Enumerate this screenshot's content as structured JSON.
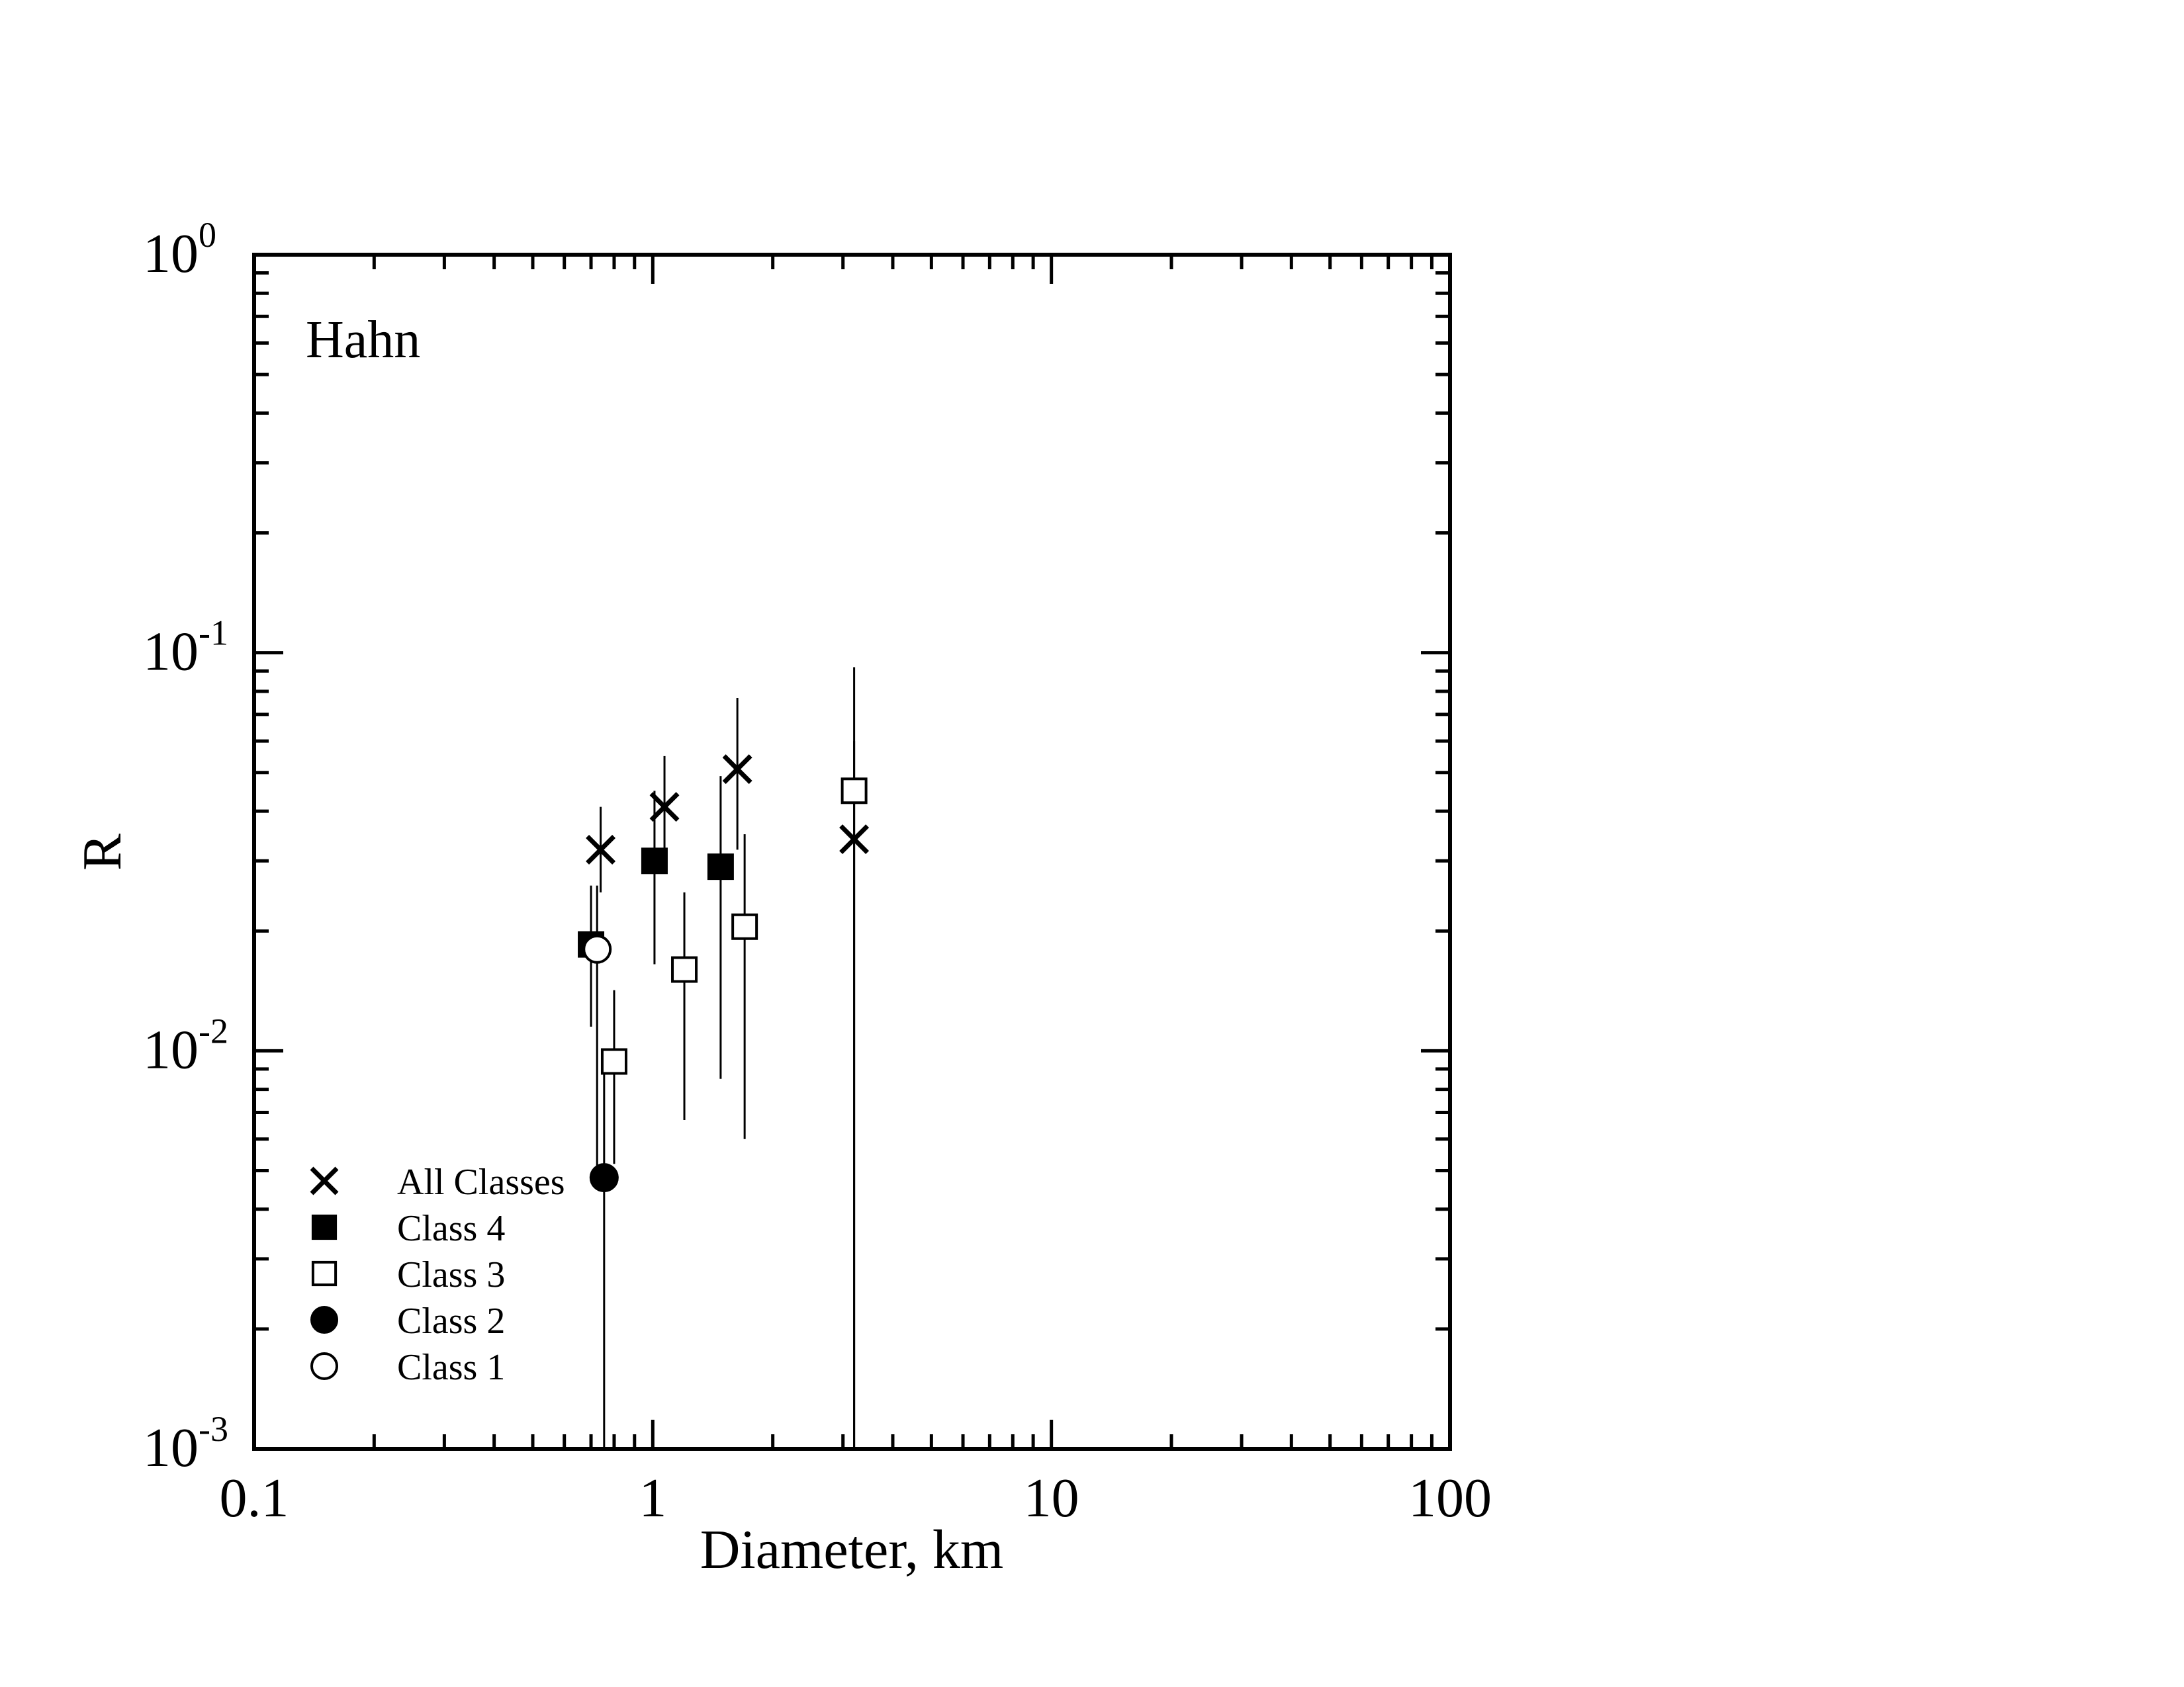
{
  "chart_data": {
    "type": "scatter",
    "annotation": "Hahn",
    "xlabel": "Diameter, km",
    "ylabel": "R",
    "xscale": "log",
    "yscale": "log",
    "xlim": [
      0.1,
      100
    ],
    "ylim": [
      0.001,
      1
    ],
    "x_tick_labels": [
      "0.1",
      "1",
      "10",
      "100"
    ],
    "y_tick_labels": [
      {
        "base": "10",
        "exp": "-3"
      },
      {
        "base": "10",
        "exp": "-2"
      },
      {
        "base": "10",
        "exp": "-1"
      },
      {
        "base": "10",
        "exp": "0"
      }
    ],
    "grid": false,
    "legend_position": "bottom-left",
    "series": [
      {
        "name": "All Classes",
        "marker": "x",
        "points": [
          {
            "x": 0.74,
            "y": 0.032,
            "ylo": 0.025,
            "yhi": 0.041
          },
          {
            "x": 1.07,
            "y": 0.041,
            "ylo": 0.03,
            "yhi": 0.055
          },
          {
            "x": 1.63,
            "y": 0.051,
            "ylo": 0.032,
            "yhi": 0.077
          },
          {
            "x": 3.2,
            "y": 0.034,
            "ylo": 0.001,
            "yhi": 0.06
          }
        ]
      },
      {
        "name": "Class 4",
        "marker": "filled-square",
        "points": [
          {
            "x": 0.7,
            "y": 0.0185,
            "ylo": 0.0115,
            "yhi": 0.026
          },
          {
            "x": 1.01,
            "y": 0.03,
            "ylo": 0.0165,
            "yhi": 0.045
          },
          {
            "x": 1.48,
            "y": 0.029,
            "ylo": 0.0085,
            "yhi": 0.049
          }
        ]
      },
      {
        "name": "Class 3",
        "marker": "open-square",
        "points": [
          {
            "x": 0.8,
            "y": 0.0094,
            "ylo": 0.0052,
            "yhi": 0.0142
          },
          {
            "x": 1.2,
            "y": 0.016,
            "ylo": 0.0067,
            "yhi": 0.025
          },
          {
            "x": 1.7,
            "y": 0.0205,
            "ylo": 0.006,
            "yhi": 0.035
          },
          {
            "x": 3.2,
            "y": 0.045,
            "ylo": 0.001,
            "yhi": 0.092
          }
        ]
      },
      {
        "name": "Class 2",
        "marker": "filled-circle",
        "points": [
          {
            "x": 0.755,
            "y": 0.0048,
            "ylo": 0.001,
            "yhi": 0.0092
          }
        ]
      },
      {
        "name": "Class 1",
        "marker": "open-circle",
        "points": [
          {
            "x": 0.725,
            "y": 0.018,
            "ylo": 0.005,
            "yhi": 0.026
          }
        ]
      }
    ]
  }
}
